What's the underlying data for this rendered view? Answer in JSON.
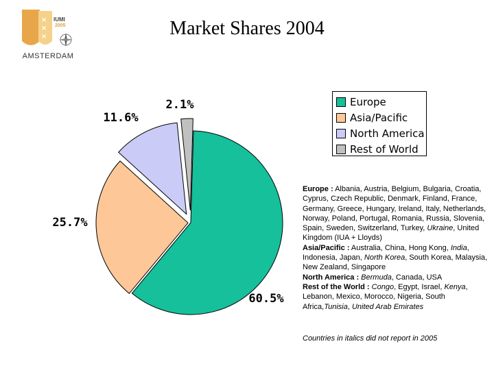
{
  "logo": {
    "name": "AMSTERDAM",
    "badge": "IUMI",
    "year": "2005",
    "colors": {
      "shield": "#e8a64a",
      "accent": "#f5d28a"
    }
  },
  "title": "Market Shares 2004",
  "chart_data": {
    "type": "pie",
    "title": "Market Shares 2004",
    "exploded": true,
    "legend_position": "top-right",
    "slices": [
      {
        "label": "Europe",
        "value": 60.5,
        "display": "60.5%",
        "color": "#16c09a"
      },
      {
        "label": "Asia/Pacific",
        "value": 25.7,
        "display": "25.7%",
        "color": "#fdc797"
      },
      {
        "label": "North America",
        "value": 11.6,
        "display": "11.6%",
        "color": "#cbcbf7"
      },
      {
        "label": "Rest of World",
        "value": 2.1,
        "display": "2.1%",
        "color": "#c0c0c0"
      }
    ]
  },
  "notes": [
    {
      "label": "Europe :",
      "segments": [
        {
          "text": " Albania, Austria, Belgium, Bulgaria, Croatia, Cyprus, Czech Republic, Denmark, Finland, France, Germany, Greece, Hungary, Ireland, Italy, Netherlands, Norway, Poland, Portugal, Romania, Russia, Slovenia, Spain, Sweden, Switzerland, Turkey, ",
          "italic": false
        },
        {
          "text": "Ukraine",
          "italic": true
        },
        {
          "text": ", United Kingdom (IUA + Lloyds)",
          "italic": false
        }
      ]
    },
    {
      "label": "Asia/Pacific :",
      "segments": [
        {
          "text": " Australia, China, Hong Kong, ",
          "italic": false
        },
        {
          "text": "India",
          "italic": true
        },
        {
          "text": ", Indonesia, Japan, ",
          "italic": false
        },
        {
          "text": "North Korea",
          "italic": true
        },
        {
          "text": ", South Korea, Malaysia, New Zealand, Singapore",
          "italic": false
        }
      ]
    },
    {
      "label": "North America :",
      "segments": [
        {
          "text": " ",
          "italic": false
        },
        {
          "text": "Bermuda",
          "italic": true
        },
        {
          "text": ", Canada, USA",
          "italic": false
        }
      ]
    },
    {
      "label": "Rest of the World :",
      "segments": [
        {
          "text": " ",
          "italic": false
        },
        {
          "text": "Congo",
          "italic": true
        },
        {
          "text": ", Egypt, Israel, ",
          "italic": false
        },
        {
          "text": "Kenya",
          "italic": true
        },
        {
          "text": ", Lebanon, Mexico, Morocco, Nigeria, South Africa,",
          "italic": false
        },
        {
          "text": "Tunisia",
          "italic": true
        },
        {
          "text": ", ",
          "italic": false
        },
        {
          "text": "United Arab Emirates",
          "italic": true
        }
      ]
    }
  ],
  "footnote": "Countries in italics did not report in 2005"
}
